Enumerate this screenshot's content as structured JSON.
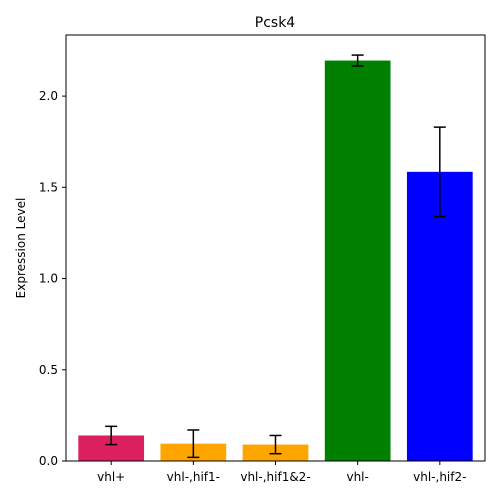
{
  "chart_data": {
    "type": "bar",
    "title": "Pcsk4",
    "xlabel": "",
    "ylabel": "Expression Level",
    "ylim": [
      0,
      2.335
    ],
    "yticks": [
      "0.0",
      "0.5",
      "1.0",
      "1.5",
      "2.0"
    ],
    "grid": false,
    "categories": [
      "vhl+",
      "vhl-,hif1-",
      "vhl-,hif1&2-",
      "vhl-",
      "vhl-,hif2-"
    ],
    "values": [
      0.14,
      0.095,
      0.09,
      2.195,
      1.585
    ],
    "error": [
      0.05,
      0.075,
      0.05,
      0.03,
      0.245
    ],
    "colors": [
      "#dc1f5e",
      "#ffa500",
      "#ffa500",
      "#008000",
      "#0000ff"
    ]
  }
}
